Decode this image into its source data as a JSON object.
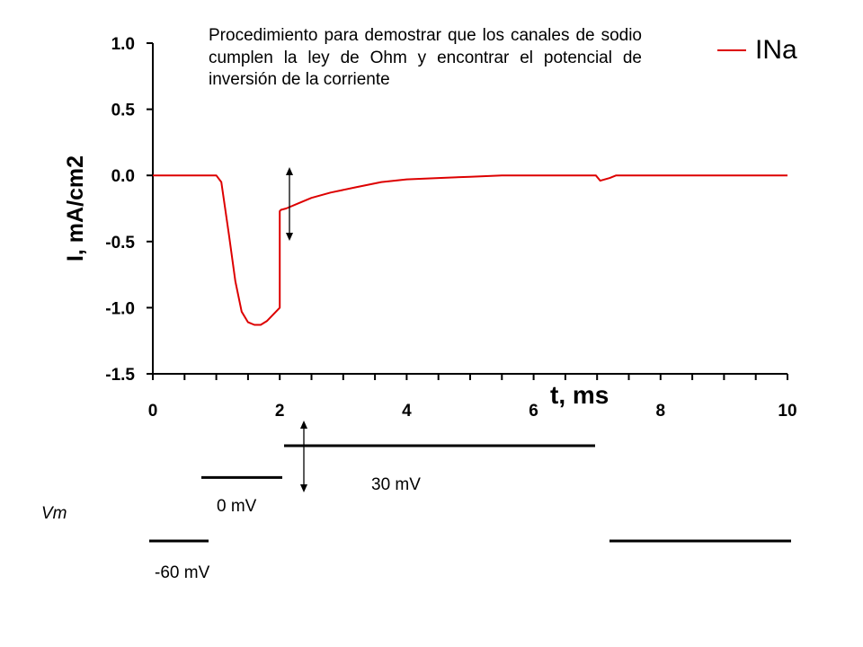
{
  "chart_data": {
    "type": "line",
    "title": "",
    "xlabel": "t, ms",
    "ylabel": "I, mA/cm2",
    "xlim": [
      0,
      10
    ],
    "ylim": [
      -1.5,
      1.0
    ],
    "x_ticks": [
      0,
      2,
      4,
      6,
      8,
      10
    ],
    "y_ticks": [
      1.0,
      0.5,
      0.0,
      -0.5,
      -1.0,
      -1.5
    ],
    "x_tick_labels": [
      "0",
      "2",
      "4",
      "6",
      "8",
      "10"
    ],
    "y_tick_labels": [
      "1.0",
      "0.5",
      "0.0",
      "-0.5",
      "-1.0",
      "-1.5"
    ],
    "grid": false,
    "legend_position": "top-right",
    "series": [
      {
        "name": "INa",
        "color": "#dd0000",
        "x": [
          0,
          1.0,
          1.08,
          1.2,
          1.3,
          1.4,
          1.5,
          1.6,
          1.7,
          1.8,
          1.9,
          2.0,
          2.0,
          2.02,
          2.1,
          2.3,
          2.5,
          2.8,
          3.2,
          3.6,
          4.0,
          4.5,
          5.0,
          5.5,
          6.0,
          6.5,
          6.98,
          7.05,
          7.2,
          7.3,
          8.0,
          9.0,
          10.0
        ],
        "y": [
          0.0,
          0.0,
          -0.05,
          -0.45,
          -0.8,
          -1.03,
          -1.11,
          -1.13,
          -1.13,
          -1.1,
          -1.05,
          -1.0,
          -0.27,
          -0.26,
          -0.25,
          -0.21,
          -0.17,
          -0.13,
          -0.09,
          -0.05,
          -0.03,
          -0.02,
          -0.01,
          0.0,
          0.0,
          0.0,
          0.0,
          -0.04,
          -0.02,
          0.0,
          0.0,
          0.0,
          0.0
        ]
      }
    ],
    "annotations": [
      "Procedimiento para demostrar que los canales de sodio cumplen la ley de Ohm y encontrar el potencial de inversión de la corriente"
    ]
  },
  "vm_protocol": {
    "label": "Vm",
    "steps": [
      {
        "t_start": 0,
        "t_end": 1,
        "mV": -60,
        "label": "-60 mV"
      },
      {
        "t_start": 1,
        "t_end": 2,
        "mV": 0,
        "label": "0 mV"
      },
      {
        "t_start": 2,
        "t_end": 7,
        "mV": 30,
        "label": "30 mV"
      },
      {
        "t_start": 7,
        "t_end": 10,
        "mV": -60,
        "label": ""
      }
    ]
  }
}
